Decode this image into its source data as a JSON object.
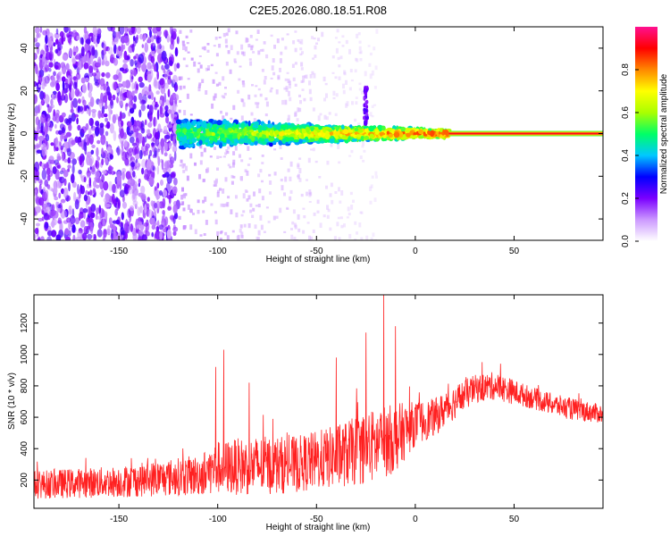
{
  "figure_title": "C2E5.2026.080.18.51.R08",
  "chart_data": [
    {
      "type": "heatmap",
      "title": "C2E5.2026.080.18.51.R08",
      "xlabel": "Height of straight line (km)",
      "ylabel": "Frequency (Hz)",
      "xlim": [
        -193,
        95
      ],
      "ylim": [
        -50,
        50
      ],
      "x_ticks": [
        -150,
        -100,
        -50,
        0,
        50
      ],
      "y_ticks": [
        -40,
        -20,
        0,
        20,
        40
      ],
      "colorbar": {
        "label": "Normalized spectral amplitude",
        "range": [
          0,
          1
        ],
        "ticks": [
          "0.0",
          "0.2",
          "0.4",
          "0.6",
          "0.8"
        ],
        "tick_values": [
          0,
          0.2,
          0.4,
          0.6,
          0.8
        ],
        "colors": [
          "#ffffff",
          "#cc99ff",
          "#7a00ff",
          "#0000ff",
          "#00c8ff",
          "#00ff66",
          "#aaff00",
          "#ffff00",
          "#ff8800",
          "#ff0000",
          "#ff1090"
        ]
      },
      "features": {
        "steady_line_start_km": 17,
        "steady_line_frequency_hz": 0,
        "steady_line_amplitude": 0.92,
        "noise_region_x": [
          -193,
          -120
        ],
        "noise_region_y": [
          -50,
          50
        ],
        "broadened_echo_x": [
          -120,
          17
        ],
        "broadened_echo_halfwidth_hz": [
          6,
          1
        ],
        "spike": {
          "x": -25,
          "y_range": [
            0,
            22
          ]
        }
      }
    },
    {
      "type": "line",
      "xlabel": "Height of straight line (km)",
      "ylabel": "SNR (10 * v/v)",
      "xlim": [
        -193,
        95
      ],
      "ylim": [
        20,
        1380
      ],
      "x_ticks": [
        -150,
        -100,
        -50,
        0,
        50
      ],
      "y_ticks": [
        200,
        400,
        600,
        800,
        1000,
        1200
      ],
      "series_color": "#ff2020",
      "envelope": {
        "x": [
          -193,
          -150,
          -110,
          -100,
          -80,
          -60,
          -40,
          -20,
          -10,
          0,
          10,
          20,
          30,
          40,
          50,
          60,
          70,
          80,
          95
        ],
        "mean": [
          170,
          190,
          230,
          280,
          290,
          300,
          350,
          420,
          470,
          560,
          600,
          700,
          780,
          800,
          760,
          720,
          680,
          650,
          620
        ],
        "spread": [
          90,
          100,
          130,
          170,
          190,
          180,
          200,
          240,
          220,
          140,
          120,
          110,
          90,
          90,
          80,
          70,
          70,
          70,
          60
        ]
      },
      "spikes": [
        {
          "x": -101,
          "value": 920
        },
        {
          "x": -97,
          "value": 1030
        },
        {
          "x": -84,
          "value": 820
        },
        {
          "x": -40,
          "value": 980
        },
        {
          "x": -25,
          "value": 1140
        },
        {
          "x": -16,
          "value": 1380
        },
        {
          "x": -10,
          "value": 1180
        }
      ]
    }
  ]
}
